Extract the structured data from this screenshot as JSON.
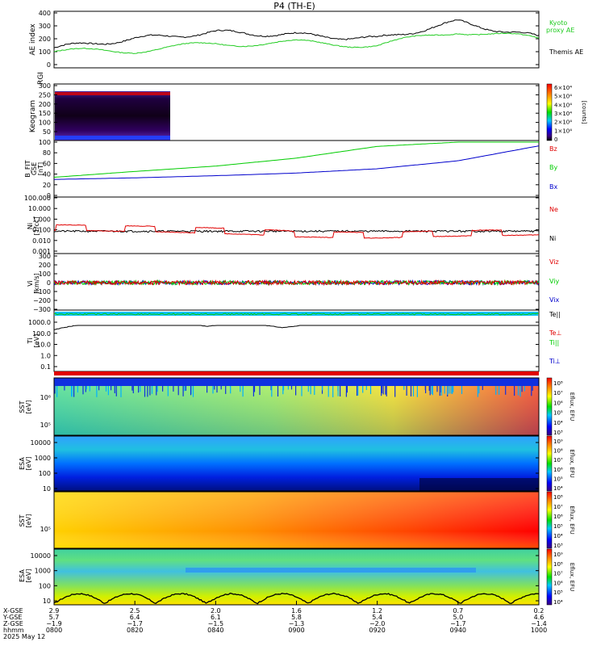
{
  "title": "P4  (TH-E)",
  "colors": {
    "kyoto": "#22cc22",
    "themis": "#000000",
    "red": "#e00000",
    "green": "#00cc00",
    "blue": "#0000cc"
  },
  "panels": {
    "ae": {
      "ylabel": "AE index",
      "yticks": [
        "400",
        "300",
        "200",
        "100",
        "0"
      ],
      "legend": [
        {
          "label": "Kyoto",
          "color": "#22cc22"
        },
        {
          "label": "proxy AE",
          "color": "#22cc22"
        },
        {
          "label": "Themis AE",
          "color": "#000000"
        }
      ]
    },
    "keogram": {
      "ylabels": [
        "Keogram",
        "RGI"
      ],
      "yticks": [
        "300",
        "250",
        "200",
        "150",
        "100",
        "50"
      ],
      "cbar_ticks": [
        "6×10⁴",
        "5×10⁴",
        "4×10⁴",
        "3×10⁴",
        "2×10⁴",
        "1×10⁴",
        "0"
      ],
      "cbar_title": "[counts]"
    },
    "bfit": {
      "ylabels": [
        "B_FIT",
        "GSE",
        "[nT]"
      ],
      "yticks": [
        "100",
        "80",
        "60",
        "40",
        "20",
        "0"
      ],
      "legend": [
        {
          "label": "Bz",
          "color": "#e00000"
        },
        {
          "label": "By",
          "color": "#00cc00"
        },
        {
          "label": "Bx",
          "color": "#0000cc"
        }
      ]
    },
    "density": {
      "ylabels": [
        "Ni",
        "[1/cc]"
      ],
      "yticks": [
        "100.000",
        "10.000",
        "1.000",
        "0.100",
        "0.010",
        "0.001"
      ],
      "legend": [
        {
          "label": "Ne",
          "color": "#e00000"
        },
        {
          "label": "Ni",
          "color": "#000000"
        }
      ]
    },
    "velocity": {
      "ylabels": [
        "Vi",
        "[km/s]"
      ],
      "yticks": [
        "300",
        "200",
        "100",
        "0",
        "−100",
        "−200",
        "−300"
      ],
      "legend": [
        {
          "label": "Viz",
          "color": "#e00000"
        },
        {
          "label": "Viy",
          "color": "#00cc00"
        },
        {
          "label": "Vix",
          "color": "#0000cc"
        }
      ]
    },
    "temperature": {
      "ylabels": [
        "Ti",
        "[eV]"
      ],
      "yticks": [
        "1000.0",
        "100.0",
        "10.0",
        "1.0",
        "0.1"
      ],
      "legend": [
        {
          "label": "Te||",
          "color": "#000000"
        },
        {
          "label": "Te⊥",
          "color": "#e00000"
        },
        {
          "label": "Ti||",
          "color": "#00cc00"
        },
        {
          "label": "Ti⊥",
          "color": "#0000cc"
        }
      ]
    },
    "sst_e": {
      "ylabels": [
        "SST",
        "[eV]"
      ],
      "yticks": [
        "10⁶",
        "10⁵"
      ]
    },
    "esa_e": {
      "ylabels": [
        "ESA",
        "[eV]"
      ],
      "yticks": [
        "10000",
        "1000",
        "100",
        "10"
      ]
    },
    "sst_i": {
      "ylabels": [
        "SST",
        "[eV]"
      ],
      "yticks": [
        "10⁵"
      ]
    },
    "esa_i": {
      "ylabels": [
        "ESA",
        "[eV]"
      ],
      "yticks": [
        "10000",
        "1000",
        "100",
        "10"
      ]
    },
    "eflux_cbar": {
      "title": "Eflux, EFU",
      "ticks_sst": [
        "10⁸",
        "10⁷",
        "10⁶",
        "10⁵",
        "10⁴",
        "10³"
      ],
      "ticks_esa": [
        "10⁹",
        "10⁸",
        "10⁷",
        "10⁶",
        "10⁵",
        "10⁴"
      ]
    }
  },
  "xaxis": {
    "row_labels": [
      "X-GSE",
      "Y-GSE",
      "Z-GSE",
      "hhmm",
      "2025 May 12"
    ],
    "ticks": [
      {
        "x": "2.9",
        "y": "5.7",
        "z": "−1.9",
        "t": "0800"
      },
      {
        "x": "2.5",
        "y": "6.4",
        "z": "−1.7",
        "t": "0820"
      },
      {
        "x": "2.0",
        "y": "6.1",
        "z": "−1.5",
        "t": "0840"
      },
      {
        "x": "1.6",
        "y": "5.8",
        "z": "−1.3",
        "t": "0900"
      },
      {
        "x": "1.2",
        "y": "5.4",
        "z": "−2.0",
        "t": "0920"
      },
      {
        "x": "0.7",
        "y": "5.0",
        "z": "−1.7",
        "t": "0940"
      },
      {
        "x": "0.2",
        "y": "4.6",
        "z": "−1.4",
        "t": "1000"
      }
    ]
  },
  "chart_data": [
    {
      "type": "line",
      "title": "P4  (TH-E)",
      "ylabel": "AE index",
      "ylim": [
        0,
        400
      ],
      "x": [
        "0800",
        "0820",
        "0840",
        "0900",
        "0920",
        "0940",
        "1000"
      ],
      "series": [
        {
          "name": "Themis AE",
          "values": [
            130,
            200,
            250,
            230,
            200,
            330,
            210
          ]
        },
        {
          "name": "Kyoto proxy AE",
          "values": [
            100,
            110,
            160,
            170,
            150,
            260,
            200
          ]
        }
      ]
    },
    {
      "type": "heatmap",
      "ylabel": "Keogram",
      "ylim": [
        0,
        300
      ],
      "x_coverage": [
        "0800",
        "0822"
      ]
    },
    {
      "type": "line",
      "ylabel": "B_FIT GSE [nT]",
      "ylim": [
        0,
        100
      ],
      "x": [
        "0800",
        "0820",
        "0840",
        "0900",
        "0920",
        "0940",
        "1000"
      ],
      "series": [
        {
          "name": "By",
          "values": [
            34,
            45,
            55,
            70,
            92,
            100,
            100
          ]
        },
        {
          "name": "Bx",
          "values": [
            30,
            33,
            37,
            42,
            50,
            65,
            93
          ]
        }
      ]
    },
    {
      "type": "line",
      "ylabel": "Ni [1/cc]",
      "ylim": [
        0.001,
        100000
      ],
      "scale": "log",
      "series": [
        {
          "name": "Ni",
          "values": [
            1.5,
            1.2,
            1.0,
            1.0,
            1.0,
            1.0,
            0.8
          ]
        },
        {
          "name": "Ne",
          "values": [
            3,
            2,
            1,
            0.3,
            0.2,
            0.4,
            0.6
          ]
        }
      ]
    },
    {
      "type": "line",
      "ylabel": "Vi [km/s]",
      "ylim": [
        -350,
        350
      ],
      "series": [
        {
          "name": "Vix",
          "values": [
            0,
            0,
            0,
            0,
            0,
            0,
            0
          ]
        },
        {
          "name": "Viy",
          "values": [
            0,
            0,
            0,
            0,
            0,
            0,
            0
          ]
        },
        {
          "name": "Viz",
          "values": [
            0,
            0,
            0,
            0,
            0,
            0,
            0
          ]
        }
      ]
    },
    {
      "type": "line",
      "ylabel": "Ti [eV]",
      "ylim": [
        0.05,
        10000
      ],
      "scale": "log",
      "series": [
        {
          "name": "Ti||",
          "values": [
            200,
            600,
            400,
            300,
            1500,
            800,
            800
          ]
        }
      ]
    },
    {
      "type": "heatmap",
      "ylabel": "SST [eV]"
    },
    {
      "type": "heatmap",
      "ylabel": "ESA [eV]",
      "ylim": [
        10,
        20000
      ]
    },
    {
      "type": "heatmap",
      "ylabel": "SST [eV]"
    },
    {
      "type": "heatmap",
      "ylabel": "ESA [eV]",
      "ylim": [
        10,
        20000
      ]
    }
  ]
}
